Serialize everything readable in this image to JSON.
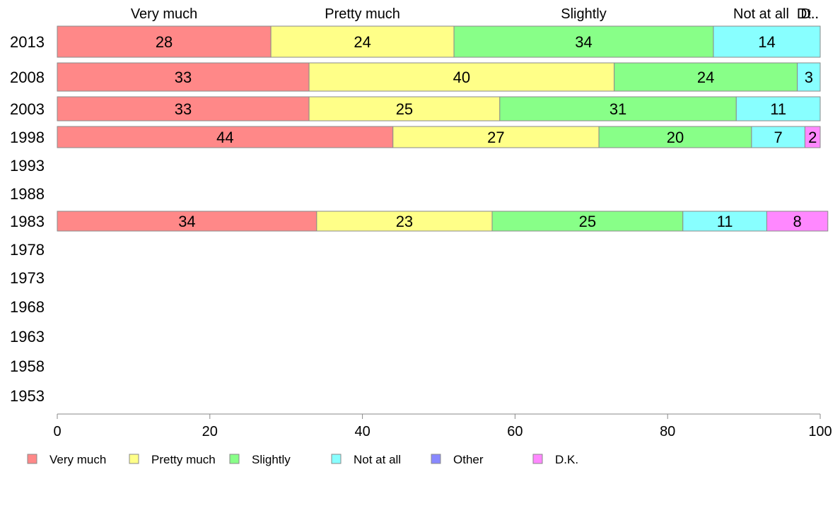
{
  "chart_data": {
    "type": "bar",
    "orientation": "horizontal",
    "stacked": true,
    "years": [
      "2013",
      "2008",
      "2003",
      "1998",
      "1993",
      "1988",
      "1983",
      "1978",
      "1973",
      "1968",
      "1963",
      "1958",
      "1953"
    ],
    "series": [
      {
        "name": "Very much",
        "color": "#ff8888",
        "values": [
          28,
          33,
          33,
          44,
          null,
          null,
          34,
          null,
          null,
          null,
          null,
          null,
          null
        ]
      },
      {
        "name": "Pretty much",
        "color": "#ffff88",
        "values": [
          24,
          40,
          25,
          27,
          null,
          null,
          23,
          null,
          null,
          null,
          null,
          null,
          null
        ]
      },
      {
        "name": "Slightly",
        "color": "#88ff88",
        "values": [
          34,
          24,
          31,
          20,
          null,
          null,
          25,
          null,
          null,
          null,
          null,
          null,
          null
        ]
      },
      {
        "name": "Not at all",
        "color": "#88ffff",
        "values": [
          14,
          3,
          11,
          7,
          null,
          null,
          11,
          null,
          null,
          null,
          null,
          null,
          null
        ]
      },
      {
        "name": "Other",
        "color": "#8888ff",
        "values": [
          0,
          0,
          0,
          0,
          null,
          null,
          0,
          null,
          null,
          null,
          null,
          null,
          null
        ]
      },
      {
        "name": "D.K.",
        "color": "#ff88ff",
        "values": [
          0,
          0,
          0,
          2,
          null,
          null,
          8,
          null,
          null,
          null,
          null,
          null,
          null
        ]
      }
    ],
    "top_labels": [
      "Very much",
      "Pretty much",
      "Slightly",
      "Not at all",
      "Dt..",
      "D.."
    ],
    "xlim": [
      0,
      100
    ],
    "xticks": [
      0,
      20,
      40,
      60,
      80,
      100
    ],
    "legend": [
      "Very much",
      "Pretty much",
      "Slightly",
      "Not at all",
      "Other",
      "D.K."
    ],
    "legend_position": "bottom-left",
    "grid": false
  }
}
